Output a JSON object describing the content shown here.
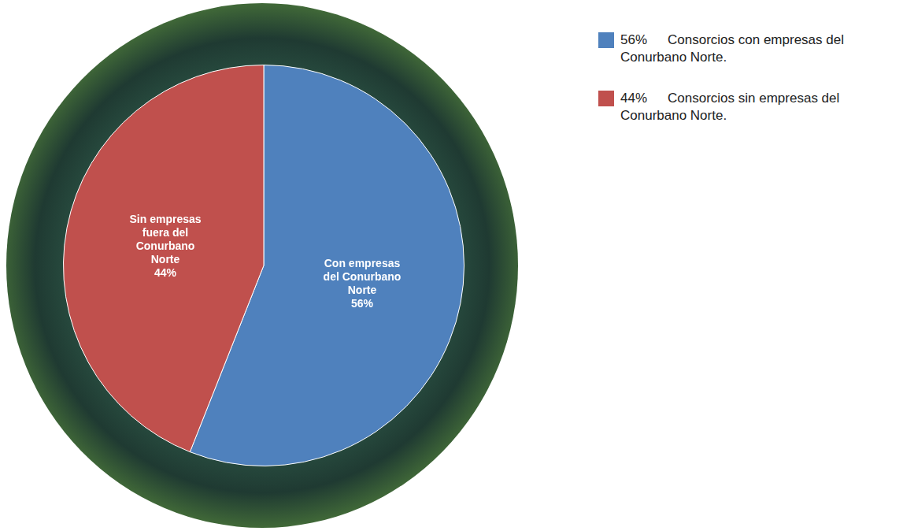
{
  "chart_data": {
    "type": "pie",
    "categories": [
      "Con empresas del Conurbano Norte",
      "Sin empresas fuera del Conurbano Norte"
    ],
    "values": [
      56,
      44
    ],
    "value_labels": [
      "56%",
      "44%"
    ],
    "colors": [
      "#4f81bd",
      "#c0504d"
    ],
    "data_labels": true,
    "legend": "right",
    "legend_labels": [
      "Consorcios con empresas del Conurbano Norte.",
      "Consorcios sin empresas del Conurbano Norte."
    ]
  }
}
